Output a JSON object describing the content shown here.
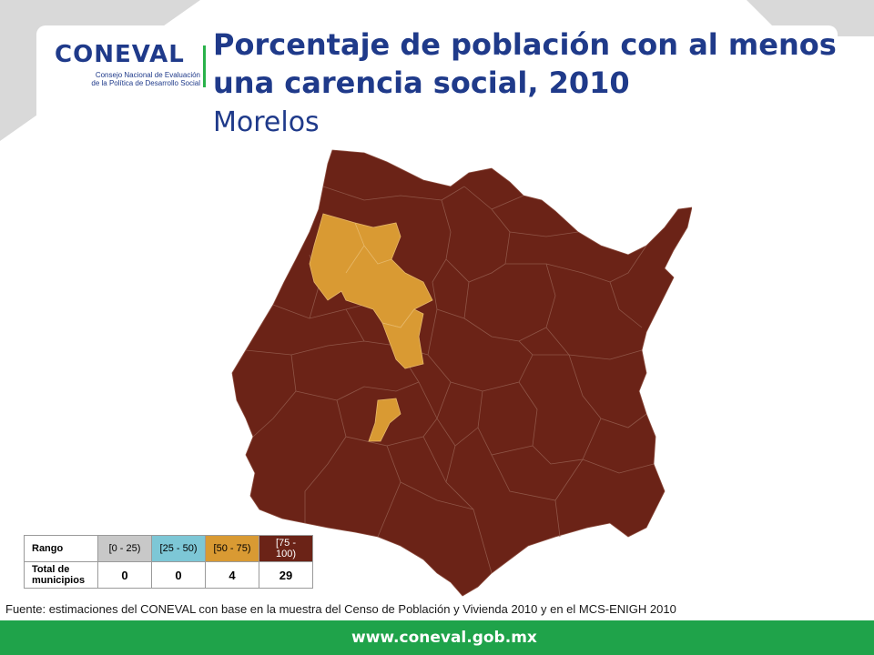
{
  "header": {
    "logo_name": "CONEVAL",
    "logo_subtitle_line1": "Consejo Nacional de Evaluación",
    "logo_subtitle_line2": "de la Política de Desarrollo Social",
    "title_line1": "Porcentaje de población con al menos",
    "title_line2": "una carencia social, 2010",
    "subtitle": "Morelos"
  },
  "colors": {
    "brand_blue": "#1f3a8a",
    "brand_green": "#1fa34a",
    "range_0_25": "#c8c8c8",
    "range_25_50": "#7dc7d6",
    "range_50_75": "#d99a33",
    "range_75_100": "#6b2317"
  },
  "legend": {
    "row_header_range": "Rango",
    "row_header_total": "Total de municipios",
    "ranges": [
      {
        "label": "[0 - 25)",
        "count": "0",
        "color": "#c8c8c8"
      },
      {
        "label": "[25 - 50)",
        "count": "0",
        "color": "#7dc7d6"
      },
      {
        "label": "[50 - 75)",
        "count": "4",
        "color": "#d99a33"
      },
      {
        "label": "[75 - 100)",
        "count": "29",
        "color": "#6b2317"
      }
    ]
  },
  "source": "Fuente: estimaciones del CONEVAL con base en la muestra del Censo de Población y Vivienda 2010 y en el MCS-ENIGH 2010",
  "footer": {
    "url": "www.coneval.gob.mx"
  }
}
